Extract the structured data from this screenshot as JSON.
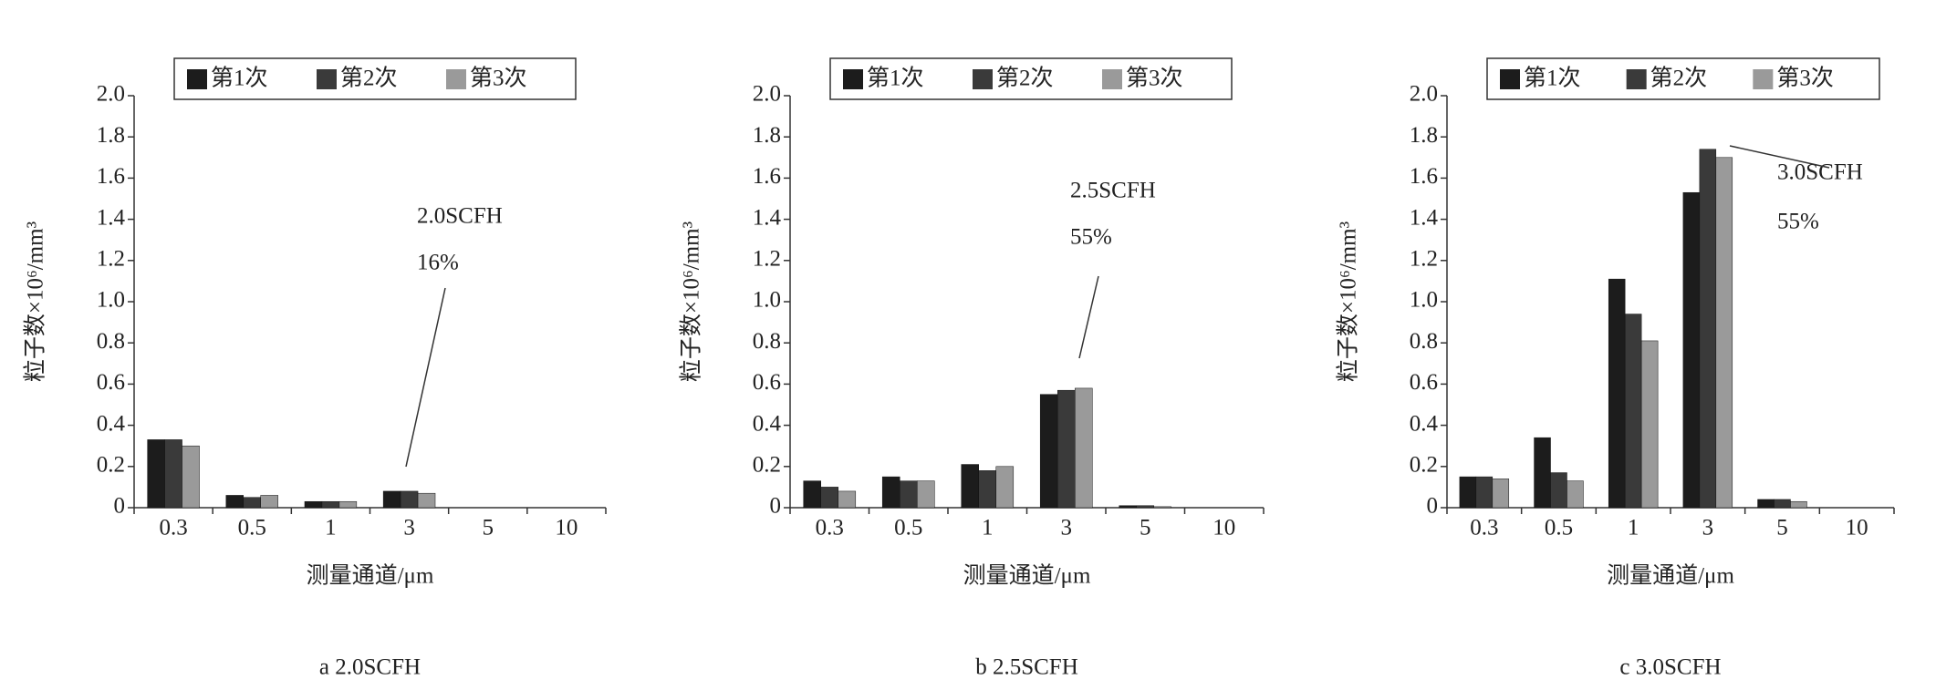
{
  "chart_data": [
    {
      "type": "bar",
      "caption": "a 2.0SCFH",
      "annotations": [
        "2.0SCFH",
        "16%"
      ],
      "x_label": "测量通道/μm",
      "y_label": "粒子数×10⁶/mm³",
      "categories": [
        "0.3",
        "0.5",
        "1",
        "3",
        "5",
        "10"
      ],
      "series": [
        {
          "name": "第1次",
          "color": "#1c1c1c",
          "values": [
            0.33,
            0.06,
            0.03,
            0.08,
            0,
            0
          ]
        },
        {
          "name": "第2次",
          "color": "#3a3a3a",
          "values": [
            0.33,
            0.05,
            0.03,
            0.08,
            0,
            0
          ]
        },
        {
          "name": "第3次",
          "color": "#9a9a9a",
          "values": [
            0.3,
            0.06,
            0.03,
            0.07,
            0,
            0
          ]
        }
      ],
      "ylim": [
        0,
        2
      ],
      "yticks": [
        0,
        0.2,
        0.4,
        0.6,
        0.8,
        {
          "value": 1,
          "label": "1.0"
        },
        1.2,
        1.4,
        1.6,
        1.8,
        {
          "value": 2,
          "label": "2.0"
        }
      ]
    },
    {
      "type": "bar",
      "caption": "b 2.5SCFH",
      "annotations": [
        "2.5SCFH",
        "55%"
      ],
      "x_label": "测量通道/μm",
      "y_label": "粒子数×10⁶/mm³",
      "categories": [
        "0.3",
        "0.5",
        "1",
        "3",
        "5",
        "10"
      ],
      "series": [
        {
          "name": "第1次",
          "color": "#1c1c1c",
          "values": [
            0.13,
            0.15,
            0.21,
            0.55,
            0.01,
            0
          ]
        },
        {
          "name": "第2次",
          "color": "#3a3a3a",
          "values": [
            0.1,
            0.13,
            0.18,
            0.57,
            0.01,
            0
          ]
        },
        {
          "name": "第3次",
          "color": "#9a9a9a",
          "values": [
            0.08,
            0.13,
            0.2,
            0.58,
            0.005,
            0
          ]
        }
      ],
      "ylim": [
        0,
        2
      ],
      "yticks": [
        0,
        0.2,
        0.4,
        0.6,
        0.8,
        {
          "value": 1,
          "label": "1.0"
        },
        1.2,
        1.4,
        1.6,
        1.8,
        {
          "value": 2,
          "label": "2.0"
        }
      ]
    },
    {
      "type": "bar",
      "caption": "c 3.0SCFH",
      "annotations": [
        "3.0SCFH",
        "55%"
      ],
      "x_label": "测量通道/μm",
      "y_label": "粒子数×10⁶/mm³",
      "categories": [
        "0.3",
        "0.5",
        "1",
        "3",
        "5",
        "10"
      ],
      "series": [
        {
          "name": "第1次",
          "color": "#1c1c1c",
          "values": [
            0.15,
            0.34,
            1.11,
            1.53,
            0.04,
            0
          ]
        },
        {
          "name": "第2次",
          "color": "#3a3a3a",
          "values": [
            0.15,
            0.17,
            0.94,
            1.74,
            0.04,
            0
          ]
        },
        {
          "name": "第3次",
          "color": "#9a9a9a",
          "values": [
            0.14,
            0.13,
            0.81,
            1.7,
            0.03,
            0
          ]
        }
      ],
      "ylim": [
        0,
        2
      ],
      "yticks": [
        0,
        0.2,
        0.4,
        0.6,
        0.8,
        {
          "value": 1,
          "label": "1.0"
        },
        1.2,
        1.4,
        1.6,
        1.8,
        {
          "value": 2,
          "label": "2.0"
        }
      ]
    }
  ]
}
